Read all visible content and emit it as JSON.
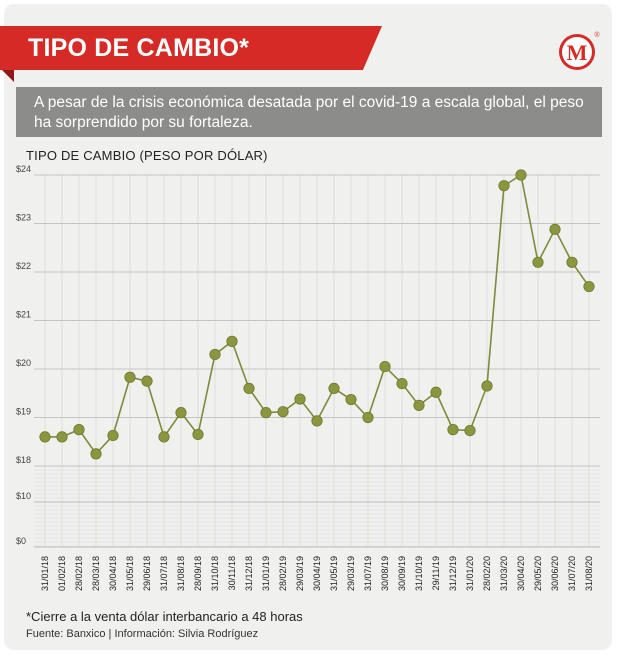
{
  "header": {
    "title": "TIPO DE CAMBIO*",
    "subtitle": "A pesar de la crisis económica desatada por el covid-19 a escala global, el peso ha sorprendido por su fortaleza.",
    "logo_letter": "M",
    "logo_mark": "®"
  },
  "colors": {
    "banner": "#d62a26",
    "subtitle_box": "#8c8c8a",
    "series": "#7f8a3c",
    "point_fill": "#8c963f",
    "logo_ring": "#d62a26"
  },
  "chart_data": {
    "type": "line",
    "title": "TIPO DE CAMBIO (PESO POR DÓLAR)",
    "grid": true,
    "axis_break": true,
    "ylim_upper": [
      18,
      24
    ],
    "ylim_lower": [
      0,
      18
    ],
    "y_ticks_upper": [
      {
        "value": 18,
        "label": "$18"
      },
      {
        "value": 19,
        "label": "$19"
      },
      {
        "value": 20,
        "label": "$20"
      },
      {
        "value": 21,
        "label": "$21"
      },
      {
        "value": 22,
        "label": "$22"
      },
      {
        "value": 23,
        "label": "$23"
      },
      {
        "value": 24,
        "label": "$24"
      }
    ],
    "y_ticks_lower": [
      {
        "value": 0,
        "label": "$0"
      },
      {
        "value": 10,
        "label": "$10"
      }
    ],
    "categories": [
      "31/01/18",
      "01/02/18",
      "28/02/18",
      "28/03/18",
      "30/04/18",
      "31/05/18",
      "29/06/18",
      "31/07/18",
      "31/08/18",
      "28/09/18",
      "31/10/18",
      "30/11/18",
      "31/12/18",
      "31/01/19",
      "28/02/19",
      "29/03/19",
      "30/04/19",
      "31/05/19",
      "29/03/19",
      "31/07/19",
      "30/08/19",
      "30/09/19",
      "31/10/19",
      "29/11/19",
      "31/12/19",
      "31/01/20",
      "28/02/20",
      "31/03/20",
      "30/04/20",
      "29/05/20",
      "30/06/20",
      "31/07/20",
      "31/08/20"
    ],
    "values": [
      18.6,
      18.6,
      18.75,
      18.25,
      18.63,
      19.83,
      19.75,
      18.6,
      19.1,
      18.65,
      20.3,
      20.57,
      19.6,
      19.1,
      19.12,
      19.38,
      18.93,
      19.6,
      19.37,
      19.0,
      20.05,
      19.7,
      19.25,
      19.52,
      18.75,
      18.73,
      19.65,
      23.78,
      24.0,
      22.2,
      22.88,
      22.2,
      21.7
    ]
  },
  "footer": {
    "footnote": "*Cierre a la venta dólar interbancario a 48 horas",
    "source": "Fuente: Banxico | Información: Silvia Rodríguez"
  }
}
